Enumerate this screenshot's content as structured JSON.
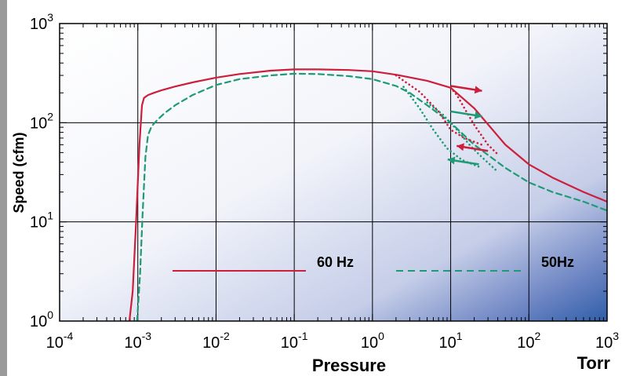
{
  "chart_data": {
    "type": "line",
    "title": "",
    "xlabel": "Pressure",
    "xunit": "Torr",
    "ylabel": "Speed (cfm)",
    "xscale": "log",
    "yscale": "log",
    "xlim": [
      0.0001,
      1000
    ],
    "ylim": [
      1,
      1000
    ],
    "grid": true,
    "legend": "inline-bottom",
    "x_ticks": [
      {
        "base": "10",
        "exp": "-4"
      },
      {
        "base": "10",
        "exp": "-3"
      },
      {
        "base": "10",
        "exp": "-2"
      },
      {
        "base": "10",
        "exp": "-1"
      },
      {
        "base": "10",
        "exp": "0"
      },
      {
        "base": "10",
        "exp": "1"
      },
      {
        "base": "10",
        "exp": "2"
      },
      {
        "base": "10",
        "exp": "3"
      }
    ],
    "y_ticks": [
      {
        "base": "10",
        "exp": "0"
      },
      {
        "base": "10",
        "exp": "1"
      },
      {
        "base": "10",
        "exp": "2"
      },
      {
        "base": "10",
        "exp": "3"
      }
    ],
    "series": [
      {
        "name": "60 Hz",
        "color": "#cc1f3c",
        "style": "solid",
        "x": [
          0.00078,
          0.00086,
          0.00095,
          0.00105,
          0.00113,
          0.0012,
          0.00135,
          0.0016,
          0.002,
          0.003,
          0.005,
          0.01,
          0.02,
          0.05,
          0.1,
          0.2,
          0.5,
          1,
          2,
          5,
          10,
          20,
          50,
          100,
          200,
          500,
          1000
        ],
        "y": [
          1,
          2,
          10,
          60,
          150,
          178,
          190,
          200,
          212,
          232,
          255,
          285,
          310,
          335,
          345,
          345,
          340,
          330,
          305,
          265,
          225,
          140,
          60,
          38,
          28,
          20,
          16
        ]
      },
      {
        "name": "50Hz",
        "color": "#1e9a74",
        "style": "dashed",
        "x": [
          0.00098,
          0.00107,
          0.00115,
          0.00125,
          0.00135,
          0.0015,
          0.0018,
          0.0022,
          0.003,
          0.005,
          0.01,
          0.02,
          0.05,
          0.1,
          0.2,
          0.5,
          1,
          2,
          3,
          5,
          10,
          20,
          50,
          100,
          200,
          500,
          1000
        ],
        "y": [
          1,
          3,
          12,
          45,
          75,
          92,
          108,
          125,
          150,
          190,
          240,
          275,
          300,
          312,
          310,
          295,
          275,
          235,
          200,
          150,
          100,
          60,
          35,
          25,
          20,
          16,
          13
        ]
      },
      {
        "name": "",
        "color": "#cc1f3c",
        "style": "dotted",
        "x": [
          2,
          4,
          7,
          10,
          15,
          25
        ],
        "y": [
          300,
          205,
          130,
          85,
          70,
          60
        ]
      },
      {
        "name": "",
        "color": "#cc1f3c",
        "style": "dotted",
        "x": [
          10,
          12,
          15,
          20,
          30,
          40
        ],
        "y": [
          225,
          190,
          140,
          95,
          60,
          48
        ]
      },
      {
        "name": "",
        "color": "#1e9a74",
        "style": "dotted",
        "x": [
          2.5,
          4,
          6,
          9,
          14,
          25
        ],
        "y": [
          230,
          140,
          85,
          55,
          42,
          35
        ]
      },
      {
        "name": "",
        "color": "#1e9a74",
        "style": "dotted",
        "x": [
          5,
          8,
          12,
          18,
          25,
          40
        ],
        "y": [
          160,
          120,
          85,
          58,
          45,
          32
        ]
      }
    ],
    "annotations": [
      {
        "text": "",
        "kind": "arrow",
        "color": "#cc1f3c",
        "x": 10,
        "y": 235,
        "dx": 0.4,
        "dy": -0.05
      },
      {
        "text": "",
        "kind": "arrow",
        "color": "#1e9a74",
        "x": 10,
        "y": 130,
        "dx": 0.4,
        "dy": -0.05
      },
      {
        "text": "",
        "kind": "arrow",
        "color": "#cc1f3c",
        "x": 30,
        "y": 52,
        "dx": -0.4,
        "dy": 0.05
      },
      {
        "text": "",
        "kind": "arrow",
        "color": "#1e9a74",
        "x": 23,
        "y": 38,
        "dx": -0.4,
        "dy": 0.05
      }
    ]
  }
}
